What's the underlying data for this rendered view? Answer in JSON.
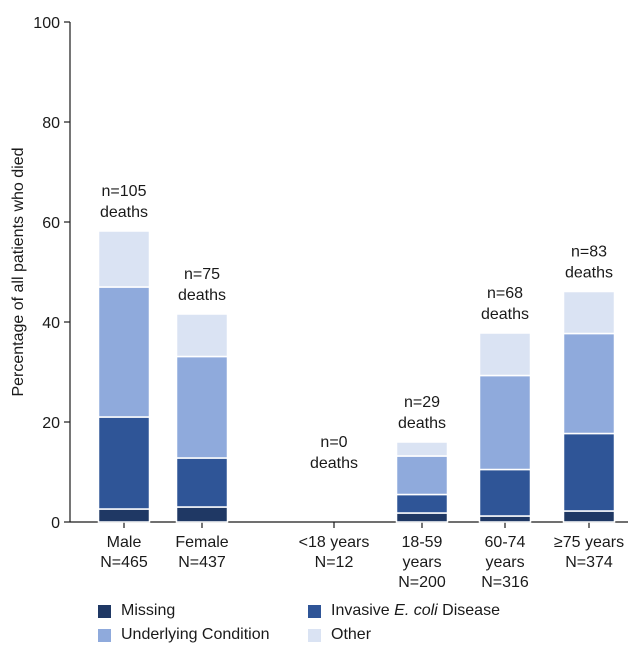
{
  "chart_data": {
    "type": "bar",
    "stacked": true,
    "title": "",
    "xlabel": "",
    "ylabel": "Percentage of all patients who died",
    "ylim": [
      0,
      100
    ],
    "yticks": [
      "0",
      "20",
      "40",
      "60",
      "80",
      "100"
    ],
    "grid": false,
    "legend_position": "bottom",
    "categories": [
      {
        "line1": "Male",
        "line2": "N=465",
        "line3": "",
        "ann1": "n=105",
        "ann2": "deaths"
      },
      {
        "line1": "Female",
        "line2": "N=437",
        "line3": "",
        "ann1": "n=75",
        "ann2": "deaths"
      },
      {
        "line1": "<18 years",
        "line2": "N=12",
        "line3": "",
        "ann1": "n=0",
        "ann2": "deaths"
      },
      {
        "line1": "18-59",
        "line2": "years",
        "line3": "N=200",
        "ann1": "n=29",
        "ann2": "deaths"
      },
      {
        "line1": "60-74",
        "line2": "years",
        "line3": "N=316",
        "ann1": "n=68",
        "ann2": "deaths"
      },
      {
        "line1": "≥75 years",
        "line2": "N=374",
        "line3": "",
        "ann1": "n=83",
        "ann2": "deaths"
      }
    ],
    "series": [
      {
        "name": "Missing",
        "color": "#1f3864",
        "values": [
          2.6,
          3.0,
          0,
          1.8,
          1.2,
          2.2
        ]
      },
      {
        "name": "Invasive E. coli Disease",
        "color": "#2f5597",
        "values": [
          18.4,
          9.8,
          0,
          3.7,
          9.3,
          15.5
        ]
      },
      {
        "name": "Underlying Condition",
        "color": "#8faadc",
        "values": [
          26.0,
          20.3,
          0,
          7.7,
          18.8,
          20.0
        ]
      },
      {
        "name": "Other",
        "color": "#dae3f3",
        "values": [
          11.2,
          8.5,
          0,
          2.8,
          8.5,
          8.4
        ]
      }
    ]
  },
  "legend": {
    "missing": "Missing",
    "invasive_prefix": "Invasive ",
    "invasive_italic": "E. coli",
    "invasive_suffix": " Disease",
    "underlying": "Underlying Condition",
    "other": "Other"
  }
}
